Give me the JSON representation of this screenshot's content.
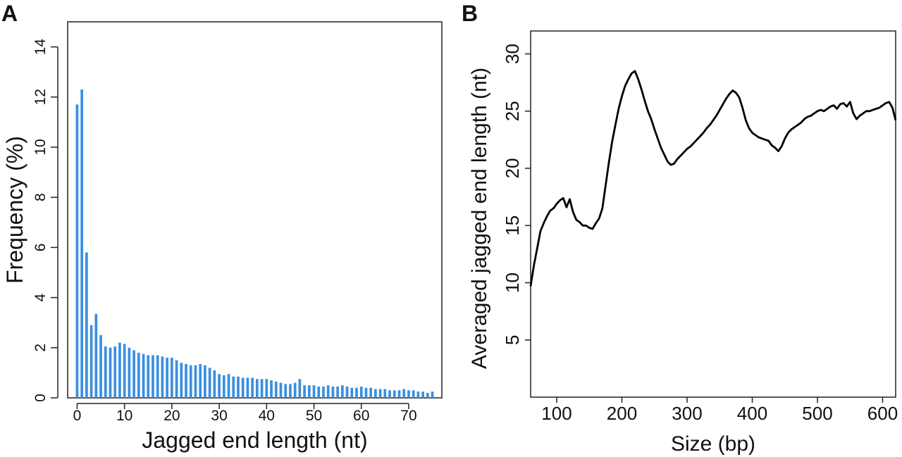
{
  "panel_labels": [
    "A",
    "B"
  ],
  "chart_data": [
    {
      "type": "bar",
      "panel": "A",
      "xlabel": "Jagged end length (nt)",
      "ylabel": "Frequency (%)",
      "xlim": [
        -2,
        77
      ],
      "ylim": [
        0,
        15
      ],
      "xticks": [
        0,
        10,
        20,
        30,
        40,
        50,
        60,
        70
      ],
      "yticks": [
        0,
        2,
        4,
        6,
        8,
        10,
        12,
        14
      ],
      "bar_color": "#3a8fe0",
      "x": [
        0,
        1,
        2,
        3,
        4,
        5,
        6,
        7,
        8,
        9,
        10,
        11,
        12,
        13,
        14,
        15,
        16,
        17,
        18,
        19,
        20,
        21,
        22,
        23,
        24,
        25,
        26,
        27,
        28,
        29,
        30,
        31,
        32,
        33,
        34,
        35,
        36,
        37,
        38,
        39,
        40,
        41,
        42,
        43,
        44,
        45,
        46,
        47,
        48,
        49,
        50,
        51,
        52,
        53,
        54,
        55,
        56,
        57,
        58,
        59,
        60,
        61,
        62,
        63,
        64,
        65,
        66,
        67,
        68,
        69,
        70,
        71,
        72,
        73,
        74,
        75
      ],
      "values": [
        11.7,
        12.3,
        5.8,
        2.9,
        3.35,
        2.5,
        2.05,
        2.0,
        2.05,
        2.2,
        2.15,
        2.0,
        1.9,
        1.8,
        1.75,
        1.7,
        1.7,
        1.7,
        1.65,
        1.6,
        1.6,
        1.5,
        1.4,
        1.35,
        1.3,
        1.3,
        1.35,
        1.3,
        1.2,
        1.1,
        0.95,
        0.9,
        0.95,
        0.85,
        0.85,
        0.8,
        0.8,
        0.8,
        0.75,
        0.75,
        0.75,
        0.7,
        0.65,
        0.6,
        0.55,
        0.55,
        0.6,
        0.75,
        0.5,
        0.5,
        0.5,
        0.45,
        0.45,
        0.5,
        0.45,
        0.45,
        0.5,
        0.45,
        0.4,
        0.4,
        0.45,
        0.4,
        0.4,
        0.35,
        0.35,
        0.35,
        0.3,
        0.3,
        0.3,
        0.35,
        0.3,
        0.3,
        0.25,
        0.25,
        0.2,
        0.25
      ]
    },
    {
      "type": "line",
      "panel": "B",
      "xlabel": "Size (bp)",
      "ylabel": "Averaged jagged end length (nt)",
      "xlim": [
        60,
        620
      ],
      "ylim": [
        0,
        32
      ],
      "xticks": [
        100,
        200,
        300,
        400,
        500,
        600
      ],
      "yticks": [
        5,
        10,
        15,
        20,
        25,
        30
      ],
      "line_color": "#000000",
      "x": [
        60,
        65,
        70,
        75,
        80,
        85,
        90,
        95,
        100,
        105,
        110,
        115,
        120,
        125,
        130,
        135,
        140,
        145,
        150,
        155,
        160,
        165,
        170,
        175,
        180,
        185,
        190,
        195,
        200,
        205,
        210,
        215,
        220,
        225,
        230,
        235,
        240,
        245,
        250,
        255,
        260,
        265,
        270,
        275,
        280,
        285,
        290,
        295,
        300,
        305,
        310,
        315,
        320,
        325,
        330,
        335,
        340,
        345,
        350,
        355,
        360,
        365,
        370,
        375,
        380,
        385,
        390,
        395,
        400,
        405,
        410,
        415,
        420,
        425,
        430,
        435,
        440,
        445,
        450,
        455,
        460,
        465,
        470,
        475,
        480,
        485,
        490,
        495,
        500,
        505,
        510,
        515,
        520,
        525,
        530,
        535,
        540,
        545,
        550,
        555,
        560,
        565,
        570,
        575,
        580,
        585,
        590,
        595,
        600,
        605,
        610,
        615,
        620
      ],
      "values": [
        9.7,
        11.5,
        13.0,
        14.5,
        15.2,
        15.8,
        16.3,
        16.5,
        16.9,
        17.2,
        17.4,
        16.6,
        17.3,
        16.2,
        15.5,
        15.3,
        15.0,
        15.0,
        14.8,
        14.7,
        15.2,
        15.6,
        16.5,
        18.5,
        20.5,
        22.3,
        23.8,
        25.2,
        26.3,
        27.2,
        27.8,
        28.3,
        28.5,
        27.8,
        26.9,
        25.9,
        25.0,
        24.3,
        23.4,
        22.6,
        21.8,
        21.2,
        20.6,
        20.3,
        20.4,
        20.8,
        21.1,
        21.4,
        21.7,
        21.9,
        22.2,
        22.5,
        22.8,
        23.1,
        23.5,
        23.8,
        24.2,
        24.6,
        25.1,
        25.6,
        26.1,
        26.5,
        26.8,
        26.6,
        26.2,
        25.3,
        24.2,
        23.5,
        23.1,
        22.9,
        22.7,
        22.6,
        22.5,
        22.4,
        22.0,
        21.8,
        21.5,
        21.9,
        22.6,
        23.1,
        23.4,
        23.6,
        23.8,
        24.0,
        24.3,
        24.5,
        24.6,
        24.8,
        25.0,
        25.1,
        25.0,
        25.2,
        25.4,
        25.5,
        25.2,
        25.6,
        25.7,
        25.4,
        25.8,
        24.8,
        24.3,
        24.6,
        24.8,
        25.0,
        25.0,
        25.1,
        25.2,
        25.3,
        25.5,
        25.7,
        25.8,
        25.3,
        24.2
      ]
    }
  ]
}
